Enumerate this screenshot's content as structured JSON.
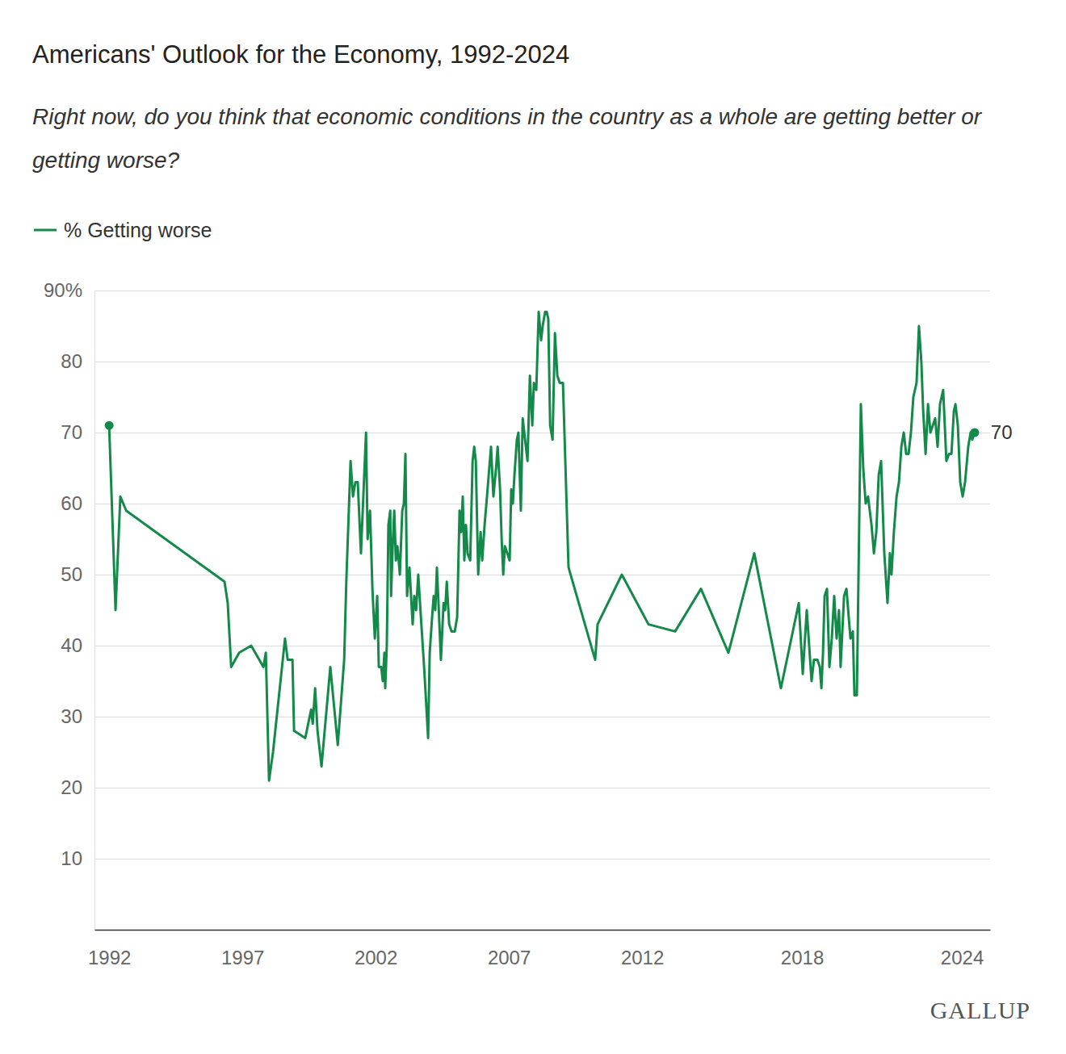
{
  "chart_data": {
    "type": "line",
    "title": "Americans' Outlook for the Economy, 1992-2024",
    "subtitle": "Right now, do you think that economic conditions in the country as a whole are getting better or getting worse?",
    "source": "GALLUP",
    "x": [
      1992.0,
      1992.24,
      1992.42,
      1992.64,
      1996.33,
      1996.45,
      1996.58,
      1996.88,
      1997.33,
      1997.79,
      1997.88,
      1998.0,
      1998.15,
      1998.6,
      1998.7,
      1998.88,
      1998.94,
      1999.36,
      1999.58,
      1999.64,
      1999.73,
      1999.82,
      1999.97,
      2000.3,
      2000.58,
      2000.82,
      2000.9,
      2001.06,
      2001.15,
      2001.24,
      2001.33,
      2001.45,
      2001.55,
      2001.64,
      2001.7,
      2001.79,
      2001.88,
      2001.97,
      2002.06,
      2002.12,
      2002.21,
      2002.27,
      2002.33,
      2002.36,
      2002.42,
      2002.48,
      2002.55,
      2002.58,
      2002.64,
      2002.7,
      2002.76,
      2002.82,
      2002.91,
      2003.0,
      2003.06,
      2003.12,
      2003.18,
      2003.27,
      2003.33,
      2003.39,
      2003.45,
      2003.52,
      2003.6,
      2003.7,
      2003.82,
      2003.97,
      2004.03,
      2004.12,
      2004.18,
      2004.24,
      2004.3,
      2004.36,
      2004.45,
      2004.55,
      2004.61,
      2004.67,
      2004.76,
      2004.85,
      2004.97,
      2005.06,
      2005.15,
      2005.21,
      2005.27,
      2005.33,
      2005.39,
      2005.45,
      2005.55,
      2005.64,
      2005.7,
      2005.76,
      2005.85,
      2005.94,
      2006.0,
      2006.09,
      2006.18,
      2006.33,
      2006.42,
      2006.52,
      2006.58,
      2006.67,
      2006.73,
      2006.79,
      2006.85,
      2006.94,
      2007.03,
      2007.09,
      2007.15,
      2007.21,
      2007.3,
      2007.36,
      2007.45,
      2007.52,
      2007.61,
      2007.7,
      2007.79,
      2007.88,
      2007.94,
      2008.03,
      2008.12,
      2008.21,
      2008.27,
      2008.36,
      2008.42,
      2008.48,
      2008.55,
      2008.64,
      2008.73,
      2008.82,
      2008.91,
      2009.03,
      2009.24,
      2010.24,
      2010.33,
      2011.24,
      2012.24,
      2013.24,
      2014.21,
      2015.24,
      2016.21,
      2017.21,
      2017.88,
      2018.03,
      2018.18,
      2018.36,
      2018.45,
      2018.58,
      2018.67,
      2018.73,
      2018.79,
      2018.85,
      2018.94,
      2019.03,
      2019.12,
      2019.21,
      2019.3,
      2019.39,
      2019.45,
      2019.58,
      2019.67,
      2019.82,
      2019.91,
      2019.97,
      2020.06,
      2020.21,
      2020.3,
      2020.39,
      2020.48,
      2020.61,
      2020.7,
      2020.79,
      2020.88,
      2020.97,
      2021.09,
      2021.21,
      2021.3,
      2021.36,
      2021.45,
      2021.55,
      2021.64,
      2021.73,
      2021.82,
      2021.91,
      2022.0,
      2022.09,
      2022.18,
      2022.3,
      2022.39,
      2022.48,
      2022.55,
      2022.64,
      2022.73,
      2022.82,
      2022.91,
      2023.0,
      2023.09,
      2023.18,
      2023.3,
      2023.42,
      2023.52,
      2023.61,
      2023.7,
      2023.76,
      2023.85,
      2023.94,
      2024.03,
      2024.12,
      2024.24,
      2024.33,
      2024.39,
      2024.48
    ],
    "series": [
      {
        "name": "% Getting worse",
        "color": "#13894a",
        "marker": "endpoints",
        "values": [
          71,
          45,
          61,
          59,
          49,
          46,
          37,
          39,
          40,
          37,
          39,
          21,
          25,
          41,
          38,
          38,
          28,
          27,
          31,
          29,
          34,
          28,
          23,
          37,
          26,
          38,
          49,
          66,
          61,
          63,
          63,
          53,
          62,
          70,
          55,
          59,
          48,
          41,
          47,
          37,
          37,
          35,
          39,
          34,
          40,
          57,
          59,
          47,
          54,
          59,
          52,
          54,
          50,
          59,
          60,
          67,
          47,
          51,
          47,
          43,
          47,
          45,
          50,
          44,
          37,
          27,
          39,
          44,
          47,
          45,
          51,
          46,
          38,
          46,
          45,
          49,
          43,
          42,
          42,
          44,
          59,
          56,
          61,
          52,
          57,
          53,
          52,
          66,
          68,
          66,
          50,
          56,
          52,
          57,
          61,
          68,
          61,
          65,
          68,
          62,
          55,
          50,
          54,
          53,
          52,
          62,
          60,
          64,
          69,
          70,
          59,
          72,
          69,
          66,
          78,
          71,
          77,
          76,
          87,
          83,
          85,
          87,
          87,
          86,
          71,
          69,
          84,
          78,
          77,
          77,
          51,
          38,
          43,
          50,
          43,
          42,
          48,
          39,
          53,
          34,
          46,
          36,
          45,
          35,
          38,
          38,
          37,
          34,
          39,
          47,
          48,
          37,
          41,
          47,
          41,
          45,
          37,
          47,
          48,
          41,
          42,
          33,
          33,
          74,
          65,
          60,
          61,
          57,
          53,
          56,
          64,
          66,
          53,
          46,
          53,
          50,
          56,
          61,
          63,
          68,
          70,
          67,
          67,
          70,
          75,
          77,
          85,
          80,
          73,
          67,
          74,
          70,
          71,
          72,
          68,
          74,
          76,
          66,
          67,
          67,
          73,
          74,
          71,
          63,
          61,
          63,
          68,
          70,
          69,
          70
        ]
      }
    ],
    "xlim": [
      1991.45,
      2025.06
    ],
    "xticks": [
      1992,
      1997,
      2002,
      2007,
      2012,
      2018,
      2024
    ],
    "ylim": [
      0,
      90
    ],
    "yticks": [
      10,
      20,
      30,
      40,
      50,
      60,
      70,
      80,
      {
        "value": 90,
        "label": "90%"
      }
    ],
    "annotations": [
      {
        "text": "70",
        "x": 2024.48,
        "y": 70
      }
    ],
    "grid": true,
    "legend": "top-left"
  }
}
